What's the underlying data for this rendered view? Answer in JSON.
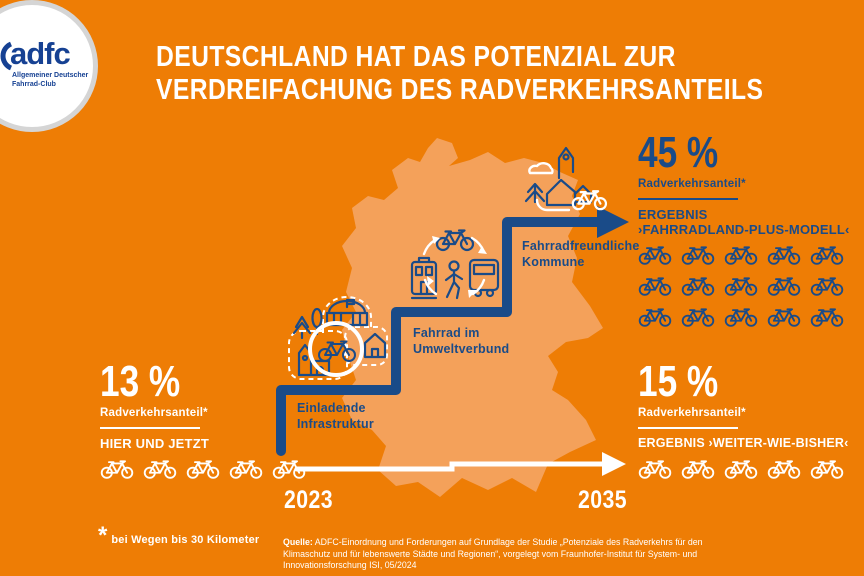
{
  "title": {
    "line1": "DEUTSCHLAND HAT DAS POTENZIAL ZUR",
    "line2": "VERDREIFACHUNG DES RADVERKEHRSANTEILS"
  },
  "logo": {
    "brand": "adfc",
    "sub1": "Allgemeiner Deutscher",
    "sub2": "Fahrrad-Club"
  },
  "colors": {
    "background_orange": "#EE7D05",
    "map_orange": "#F4A15A",
    "brand_blue": "#1A4B88",
    "white": "#FFFFFF"
  },
  "steps": [
    {
      "line1": "Einladende",
      "line2": "Infrastruktur",
      "icon": "inviting-infrastructure"
    },
    {
      "line1": "Fahrrad im",
      "line2": "Umweltverbund",
      "icon": "bike-in-eco-mobility-mix"
    },
    {
      "line1": "Fahrradfreundliche",
      "line2": "Kommune",
      "icon": "bike-friendly-community"
    }
  ],
  "stats": {
    "now": {
      "value": "13 %",
      "label": "Radverkehrsanteil*",
      "caption": "HIER UND JETZT",
      "bike_count": 5
    },
    "plus": {
      "value": "45 %",
      "label": "Radverkehrsanteil*",
      "caption1": "ERGEBNIS",
      "caption2": "›FAHRRADLAND-PLUS-MODELL‹",
      "bike_count": 15
    },
    "bau": {
      "value": "15 %",
      "label": "Radverkehrsanteil*",
      "caption": "ERGEBNIS ›WEITER-WIE-BISHER‹",
      "bike_count": 5
    }
  },
  "timeline": {
    "start_year": "2023",
    "end_year": "2035"
  },
  "footnote": {
    "symbol": "*",
    "text": "bei Wegen bis 30 Kilometer"
  },
  "source": {
    "label": "Quelle:",
    "text": "ADFC-Einordnung und Forderungen auf Grundlage der Studie „Potenziale des Radverkehrs für den Klimaschutz und für lebenswerte Städte und Regionen“, vorgelegt vom Fraunhofer-Institut für System- und Innovationsforschung ISI, 05/2024"
  },
  "chart_data": {
    "type": "pictogram-steps",
    "title": "Deutschland hat das Potenzial zur Verdreifachung des Radverkehrsanteils",
    "categories": [
      "2023 – Hier und jetzt",
      "2035 – Ergebnis ›Weiter-wie-bisher‹",
      "2035 – Ergebnis ›Fahrradland-Plus-Modell‹"
    ],
    "values": [
      13,
      15,
      45
    ],
    "unit": "% Radverkehrsanteil (bei Wegen bis 30 Kilometer)",
    "steps_to_target": [
      "Einladende Infrastruktur",
      "Fahrrad im Umweltverbund",
      "Fahrradfreundliche Kommune"
    ]
  }
}
